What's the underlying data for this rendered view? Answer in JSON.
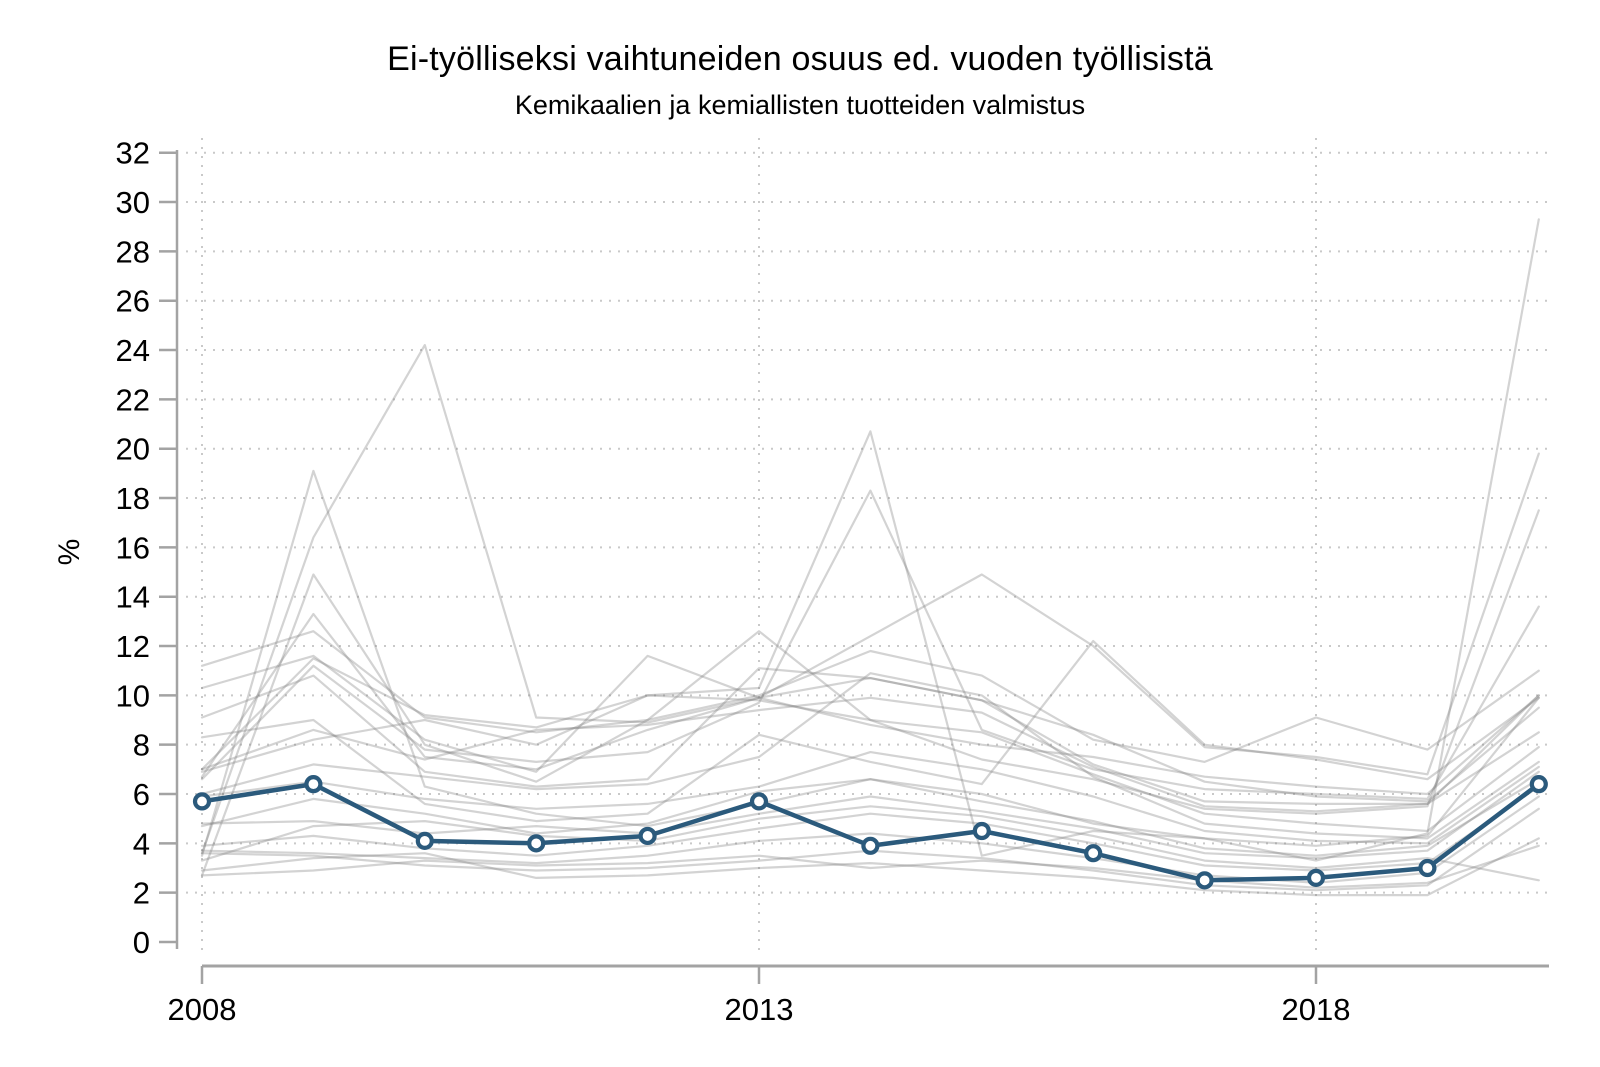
{
  "title": "Ei-työlliseksi vaihtuneiden osuus ed. vuoden työllisistä",
  "subtitle": "Kemikaalien ja kemiallisten tuotteiden valmistus",
  "colors": {
    "highlight": "#2b5a7c",
    "background_line": "#a9a9a9",
    "grid": "#c9c9c9",
    "axis": "#a3a3a3",
    "text": "#000000"
  },
  "chart_data": {
    "type": "line",
    "title": "Ei-työlliseksi vaihtuneiden osuus ed. vuoden työllisistä",
    "subtitle": "Kemikaalien ja kemiallisten tuotteiden valmistus",
    "xlabel": "",
    "ylabel": "%",
    "ylim": [
      0,
      32
    ],
    "ytick_step": 2,
    "grid": "dotted",
    "legend": "none",
    "x": [
      2008,
      2009,
      2010,
      2011,
      2012,
      2013,
      2014,
      2015,
      2016,
      2017,
      2018,
      2019,
      2020
    ],
    "xticks": [
      2008,
      2013,
      2018
    ],
    "highlighted_series": {
      "role": "industry-highlight",
      "marker": "circle",
      "values": [
        5.7,
        6.4,
        4.1,
        4.0,
        4.3,
        5.7,
        3.9,
        4.5,
        3.6,
        2.5,
        2.6,
        3.0,
        6.4
      ]
    },
    "background_series": [
      {
        "values": [
          3.6,
          16.4,
          24.2,
          9.1,
          8.9,
          9.9,
          10.7,
          9.8,
          7.2,
          5.7,
          5.6,
          5.6,
          10.0
        ]
      },
      {
        "values": [
          3.5,
          19.1,
          6.3,
          5.2,
          4.7,
          5.6,
          6.6,
          6.0,
          4.8,
          4.2,
          3.9,
          4.3,
          9.9
        ]
      },
      {
        "values": [
          2.7,
          14.9,
          8.0,
          6.5,
          9.0,
          12.6,
          9.0,
          7.4,
          6.6,
          5.4,
          5.2,
          5.5,
          17.5
        ]
      },
      {
        "values": [
          6.7,
          13.3,
          7.5,
          7.0,
          8.6,
          9.9,
          12.4,
          14.9,
          12.0,
          7.9,
          7.5,
          6.8,
          19.8
        ]
      },
      {
        "values": [
          7.0,
          11.5,
          9.2,
          8.7,
          10.0,
          10.3,
          20.7,
          3.5,
          4.5,
          4.2,
          3.3,
          4.4,
          29.3
        ]
      },
      {
        "values": [
          6.6,
          11.2,
          7.8,
          7.3,
          7.7,
          9.7,
          18.3,
          8.6,
          7.0,
          6.2,
          6.0,
          5.8,
          13.6
        ]
      },
      {
        "values": [
          11.2,
          12.6,
          9.1,
          8.5,
          9.0,
          10.0,
          11.8,
          10.8,
          8.2,
          7.3,
          9.1,
          7.8,
          11.0
        ]
      },
      {
        "values": [
          10.3,
          11.6,
          8.2,
          6.9,
          11.6,
          9.9,
          8.8,
          8.0,
          7.5,
          6.7,
          6.3,
          6.0,
          10.0
        ]
      },
      {
        "values": [
          9.1,
          10.8,
          6.9,
          6.3,
          6.6,
          11.1,
          10.7,
          9.8,
          8.4,
          6.5,
          5.9,
          5.7,
          9.5
        ]
      },
      {
        "values": [
          8.3,
          9.0,
          5.6,
          4.9,
          5.2,
          8.4,
          7.3,
          6.4,
          12.2,
          8.0,
          7.4,
          6.6,
          9.9
        ]
      },
      {
        "values": [
          7.0,
          8.6,
          7.4,
          8.6,
          8.8,
          9.4,
          9.9,
          9.3,
          7.1,
          5.5,
          5.3,
          5.6,
          8.5
        ]
      },
      {
        "values": [
          6.9,
          8.2,
          9.0,
          8.0,
          10.0,
          9.8,
          9.0,
          8.5,
          6.8,
          5.2,
          4.8,
          4.5,
          7.9
        ]
      },
      {
        "values": [
          6.0,
          7.2,
          6.7,
          6.2,
          6.4,
          7.5,
          10.9,
          10.0,
          6.7,
          4.8,
          4.4,
          4.2,
          7.3
        ]
      },
      {
        "values": [
          5.9,
          6.5,
          5.8,
          5.4,
          5.6,
          6.3,
          7.7,
          7.0,
          5.9,
          4.5,
          4.1,
          4.0,
          7.1
        ]
      },
      {
        "values": [
          4.8,
          4.9,
          4.4,
          4.7,
          4.4,
          5.2,
          5.9,
          5.3,
          4.6,
          3.6,
          3.4,
          3.7,
          6.9
        ]
      },
      {
        "values": [
          4.7,
          5.8,
          5.2,
          4.4,
          4.8,
          6.1,
          6.6,
          5.7,
          4.9,
          3.8,
          3.5,
          3.9,
          6.6
        ]
      },
      {
        "values": [
          3.9,
          4.3,
          3.8,
          3.5,
          3.9,
          4.6,
          5.2,
          4.8,
          4.0,
          3.1,
          2.9,
          3.2,
          6.3
        ]
      },
      {
        "values": [
          3.7,
          3.6,
          3.4,
          3.2,
          3.5,
          4.1,
          4.4,
          4.0,
          3.4,
          2.7,
          2.4,
          2.8,
          5.9
        ]
      },
      {
        "values": [
          3.6,
          3.5,
          3.1,
          2.9,
          3.0,
          3.3,
          3.7,
          3.4,
          2.9,
          2.3,
          2.1,
          2.3,
          5.4
        ]
      },
      {
        "values": [
          2.9,
          3.4,
          3.6,
          2.6,
          2.7,
          3.0,
          3.2,
          2.9,
          2.6,
          2.1,
          1.9,
          1.9,
          4.2
        ]
      },
      {
        "values": [
          2.7,
          2.9,
          3.3,
          3.1,
          3.2,
          3.5,
          3.0,
          3.3,
          3.0,
          2.5,
          2.2,
          2.4,
          3.9
        ]
      },
      {
        "values": [
          3.3,
          4.7,
          4.9,
          4.3,
          4.1,
          5.0,
          5.5,
          5.1,
          4.3,
          3.3,
          3.0,
          3.4,
          2.5
        ]
      }
    ]
  }
}
